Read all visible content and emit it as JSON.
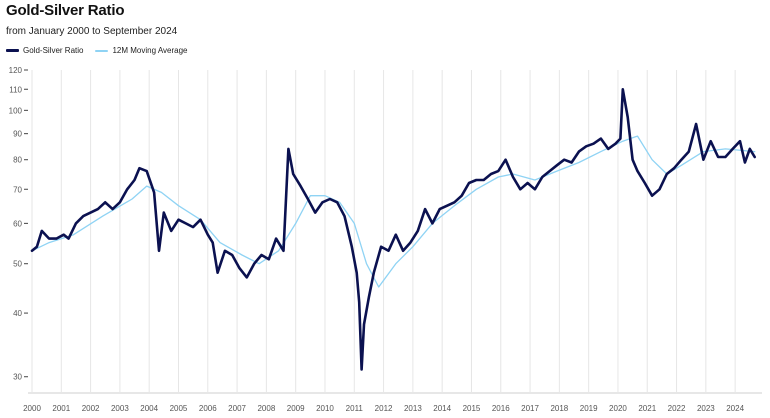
{
  "chart_data": {
    "type": "line",
    "title": "Gold-Silver Ratio",
    "subtitle": "from January 2000 to September 2024",
    "xlabel": "",
    "ylabel": "",
    "y_scale": "log",
    "ylim": [
      28,
      120
    ],
    "xlim": [
      "2000-01",
      "2024-12"
    ],
    "grid": "vertical",
    "legend_position": "top-left",
    "y_ticks": [
      30,
      40,
      50,
      60,
      70,
      80,
      90,
      100,
      110,
      120
    ],
    "x_ticks": [
      "2000",
      "2001",
      "2002",
      "2003",
      "2004",
      "2005",
      "2006",
      "2007",
      "2008",
      "2009",
      "2010",
      "2011",
      "2012",
      "2013",
      "2014",
      "2015",
      "2016",
      "2017",
      "2018",
      "2019",
      "2020",
      "2021",
      "2022",
      "2023",
      "2024"
    ],
    "series": [
      {
        "name": "Gold-Silver Ratio",
        "color": "#0b1150",
        "points": [
          [
            "2000-01",
            53
          ],
          [
            "2000-03",
            54
          ],
          [
            "2000-05",
            58
          ],
          [
            "2000-08",
            56
          ],
          [
            "2000-11",
            56
          ],
          [
            "2001-02",
            57
          ],
          [
            "2001-04",
            56
          ],
          [
            "2001-07",
            60
          ],
          [
            "2001-10",
            62
          ],
          [
            "2002-01",
            63
          ],
          [
            "2002-04",
            64
          ],
          [
            "2002-07",
            66
          ],
          [
            "2002-10",
            64
          ],
          [
            "2003-01",
            66
          ],
          [
            "2003-04",
            70
          ],
          [
            "2003-07",
            73
          ],
          [
            "2003-09",
            77
          ],
          [
            "2003-12",
            76
          ],
          [
            "2004-03",
            69
          ],
          [
            "2004-05",
            53
          ],
          [
            "2004-07",
            63
          ],
          [
            "2004-10",
            58
          ],
          [
            "2005-01",
            61
          ],
          [
            "2005-04",
            60
          ],
          [
            "2005-07",
            59
          ],
          [
            "2005-10",
            61
          ],
          [
            "2006-01",
            57
          ],
          [
            "2006-03",
            55
          ],
          [
            "2006-05",
            48
          ],
          [
            "2006-08",
            53
          ],
          [
            "2006-11",
            52
          ],
          [
            "2007-02",
            49
          ],
          [
            "2007-05",
            47
          ],
          [
            "2007-08",
            50
          ],
          [
            "2007-11",
            52
          ],
          [
            "2008-02",
            51
          ],
          [
            "2008-05",
            56
          ],
          [
            "2008-08",
            53
          ],
          [
            "2008-10",
            84
          ],
          [
            "2008-12",
            75
          ],
          [
            "2009-03",
            71
          ],
          [
            "2009-06",
            67
          ],
          [
            "2009-09",
            63
          ],
          [
            "2009-12",
            66
          ],
          [
            "2010-03",
            67
          ],
          [
            "2010-06",
            66
          ],
          [
            "2010-09",
            62
          ],
          [
            "2010-12",
            54
          ],
          [
            "2011-02",
            48
          ],
          [
            "2011-03",
            42
          ],
          [
            "2011-04",
            31
          ],
          [
            "2011-05",
            38
          ],
          [
            "2011-07",
            43
          ],
          [
            "2011-09",
            48
          ],
          [
            "2011-12",
            54
          ],
          [
            "2012-03",
            53
          ],
          [
            "2012-06",
            57
          ],
          [
            "2012-09",
            53
          ],
          [
            "2012-12",
            55
          ],
          [
            "2013-03",
            58
          ],
          [
            "2013-06",
            64
          ],
          [
            "2013-09",
            60
          ],
          [
            "2013-12",
            64
          ],
          [
            "2014-03",
            65
          ],
          [
            "2014-06",
            66
          ],
          [
            "2014-09",
            68
          ],
          [
            "2014-12",
            72
          ],
          [
            "2015-03",
            73
          ],
          [
            "2015-06",
            73
          ],
          [
            "2015-09",
            75
          ],
          [
            "2015-12",
            76
          ],
          [
            "2016-03",
            80
          ],
          [
            "2016-06",
            74
          ],
          [
            "2016-09",
            70
          ],
          [
            "2016-12",
            72
          ],
          [
            "2017-03",
            70
          ],
          [
            "2017-06",
            74
          ],
          [
            "2017-09",
            76
          ],
          [
            "2017-12",
            78
          ],
          [
            "2018-03",
            80
          ],
          [
            "2018-06",
            79
          ],
          [
            "2018-09",
            83
          ],
          [
            "2018-12",
            85
          ],
          [
            "2019-03",
            86
          ],
          [
            "2019-06",
            88
          ],
          [
            "2019-09",
            84
          ],
          [
            "2019-12",
            86
          ],
          [
            "2020-02",
            88
          ],
          [
            "2020-03",
            110
          ],
          [
            "2020-05",
            97
          ],
          [
            "2020-07",
            80
          ],
          [
            "2020-09",
            76
          ],
          [
            "2020-12",
            72
          ],
          [
            "2021-03",
            68
          ],
          [
            "2021-06",
            70
          ],
          [
            "2021-09",
            75
          ],
          [
            "2021-12",
            77
          ],
          [
            "2022-03",
            80
          ],
          [
            "2022-06",
            83
          ],
          [
            "2022-09",
            94
          ],
          [
            "2022-12",
            80
          ],
          [
            "2023-03",
            87
          ],
          [
            "2023-06",
            81
          ],
          [
            "2023-09",
            81
          ],
          [
            "2023-12",
            84
          ],
          [
            "2024-03",
            87
          ],
          [
            "2024-05",
            79
          ],
          [
            "2024-07",
            84
          ],
          [
            "2024-09",
            81
          ]
        ]
      },
      {
        "name": "12M Moving Average",
        "color": "#8fd3f4",
        "points": [
          [
            "2000-01",
            53
          ],
          [
            "2000-08",
            55
          ],
          [
            "2001-06",
            57
          ],
          [
            "2002-06",
            62
          ],
          [
            "2003-06",
            67
          ],
          [
            "2003-12",
            71
          ],
          [
            "2004-06",
            69
          ],
          [
            "2005-01",
            65
          ],
          [
            "2005-10",
            61
          ],
          [
            "2006-06",
            55
          ],
          [
            "2007-03",
            52
          ],
          [
            "2007-10",
            50
          ],
          [
            "2008-06",
            53
          ],
          [
            "2009-01",
            60
          ],
          [
            "2009-07",
            68
          ],
          [
            "2010-01",
            68
          ],
          [
            "2010-07",
            66
          ],
          [
            "2011-01",
            60
          ],
          [
            "2011-06",
            50
          ],
          [
            "2011-11",
            45
          ],
          [
            "2012-06",
            50
          ],
          [
            "2013-01",
            54
          ],
          [
            "2013-09",
            60
          ],
          [
            "2014-06",
            65
          ],
          [
            "2015-03",
            70
          ],
          [
            "2015-12",
            74
          ],
          [
            "2016-06",
            75
          ],
          [
            "2017-03",
            73
          ],
          [
            "2017-12",
            76
          ],
          [
            "2018-09",
            79
          ],
          [
            "2019-06",
            83
          ],
          [
            "2020-03",
            87
          ],
          [
            "2020-09",
            89
          ],
          [
            "2021-03",
            80
          ],
          [
            "2021-09",
            75
          ],
          [
            "2022-03",
            78
          ],
          [
            "2022-12",
            83
          ],
          [
            "2023-09",
            84
          ],
          [
            "2024-09",
            83
          ]
        ]
      }
    ]
  }
}
